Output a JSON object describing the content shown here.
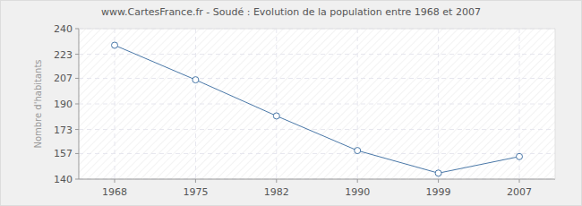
{
  "chart_data": {
    "type": "line",
    "title": "www.CartesFrance.fr - Soudé : Evolution de la population entre 1968 et 2007",
    "y_label": "Nombre d'habitants",
    "categories": [
      "1968",
      "1975",
      "1982",
      "1990",
      "1999",
      "2007"
    ],
    "values": [
      229,
      206,
      182,
      159,
      144,
      155
    ],
    "color": "#4a78a8",
    "marker": "circle",
    "ylim": [
      140,
      240
    ],
    "yticks": [
      140,
      157,
      173,
      190,
      207,
      223,
      240
    ],
    "grid": true
  }
}
